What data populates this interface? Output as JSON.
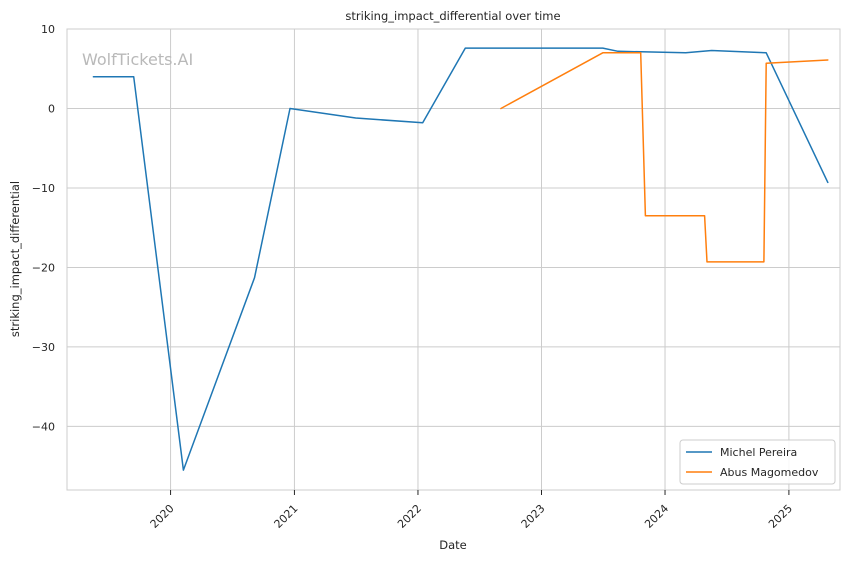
{
  "chart_data": {
    "type": "line",
    "title": "striking_impact_differential over time",
    "xlabel": "Date",
    "ylabel": "striking_impact_differential",
    "watermark": "WolfTickets.AI",
    "xlim": [
      "2019-03-01",
      "2025-06-01"
    ],
    "ylim": [
      -48.0,
      10.0
    ],
    "yticks": [
      10,
      0,
      -10,
      -20,
      -30,
      -40
    ],
    "ytick_labels": [
      "10",
      "0",
      "−10",
      "−20",
      "−30",
      "−40"
    ],
    "xticks": [
      "2020-01-01",
      "2021-01-01",
      "2022-01-01",
      "2023-01-01",
      "2024-01-01",
      "2025-01-01"
    ],
    "xtick_labels": [
      "2020",
      "2021",
      "2022",
      "2023",
      "2024",
      "2025"
    ],
    "grid": true,
    "legend_position": "bottom-right",
    "series": [
      {
        "name": "Michel Pereira",
        "color": "#1f77b4",
        "points": [
          {
            "x": "2019-05-18",
            "y": 4.0
          },
          {
            "x": "2019-09-14",
            "y": 4.0
          },
          {
            "x": "2020-02-08",
            "y": -45.5
          },
          {
            "x": "2020-09-05",
            "y": -21.3
          },
          {
            "x": "2020-12-19",
            "y": 0.0
          },
          {
            "x": "2021-07-01",
            "y": -1.2
          },
          {
            "x": "2022-01-15",
            "y": -1.8
          },
          {
            "x": "2022-05-21",
            "y": 7.6
          },
          {
            "x": "2023-07-01",
            "y": 7.6
          },
          {
            "x": "2023-08-15",
            "y": 7.2
          },
          {
            "x": "2024-03-02",
            "y": 7.0
          },
          {
            "x": "2024-05-18",
            "y": 7.3
          },
          {
            "x": "2024-10-26",
            "y": 7.0
          },
          {
            "x": "2025-04-26",
            "y": -9.3
          }
        ]
      },
      {
        "name": "Abus Magomedov",
        "color": "#ff7f0e",
        "points": [
          {
            "x": "2022-09-03",
            "y": 0.0
          },
          {
            "x": "2023-07-01",
            "y": 7.0
          },
          {
            "x": "2023-10-21",
            "y": 7.0
          },
          {
            "x": "2023-11-04",
            "y": -13.5
          },
          {
            "x": "2024-04-27",
            "y": -13.5
          },
          {
            "x": "2024-05-04",
            "y": -19.3
          },
          {
            "x": "2024-10-19",
            "y": -19.3
          },
          {
            "x": "2024-10-26",
            "y": 5.7
          },
          {
            "x": "2025-04-26",
            "y": 6.1
          }
        ]
      }
    ]
  }
}
